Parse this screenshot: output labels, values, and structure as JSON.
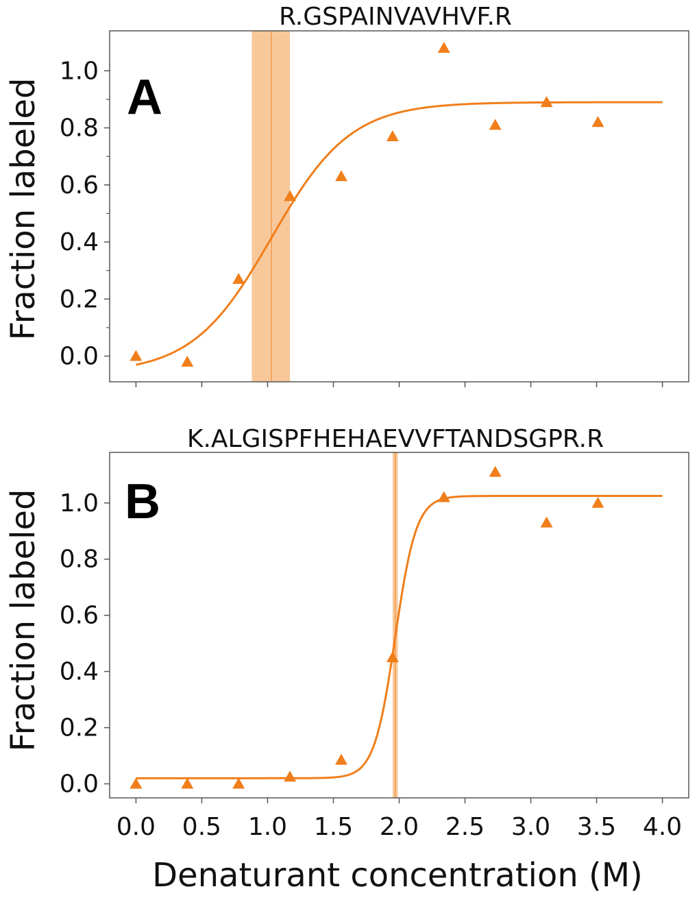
{
  "xlabel": "Denaturant concentration (M)",
  "colors": {
    "series": "#f07e1b",
    "band": "#f5b57a",
    "axes": "#555555"
  },
  "chart_data": [
    {
      "type": "scatter",
      "panel_label": "A",
      "title": "R.GSPAINVAVHVF.R",
      "xlabel": "",
      "ylabel": "Fraction labeled",
      "xlim": [
        -0.2,
        4.2
      ],
      "ylim": [
        -0.09,
        1.14
      ],
      "xticks": [
        "0.0",
        "0.5",
        "1.0",
        "1.5",
        "2.0",
        "2.5",
        "3.0",
        "3.5",
        "4.0"
      ],
      "xtick_labels_visible": false,
      "yticks": [
        "0.0",
        "0.2",
        "0.4",
        "0.6",
        "0.8",
        "1.0"
      ],
      "minor_yticks": [
        0.1,
        0.3,
        0.5,
        0.7,
        0.9
      ],
      "marker": "triangle",
      "points": {
        "x": [
          0.0,
          0.39,
          0.78,
          1.17,
          1.56,
          1.95,
          2.34,
          2.73,
          3.12,
          3.51
        ],
        "y": [
          0.0,
          -0.02,
          0.27,
          0.56,
          0.63,
          0.77,
          1.08,
          0.81,
          0.89,
          0.82
        ]
      },
      "fit": {
        "model": "sigmoid",
        "bottom": -0.06,
        "top": 0.89,
        "midpoint": 1.03,
        "slope": 0.3,
        "x_range": [
          0.0,
          4.0
        ]
      },
      "midpoint_band": {
        "center": 1.03,
        "low": 0.88,
        "high": 1.17
      }
    },
    {
      "type": "scatter",
      "panel_label": "B",
      "title": "K.ALGISPFHEHAEVVFTANDSGPR.R",
      "xlabel": "Denaturant concentration (M)",
      "ylabel": "Fraction labeled",
      "xlim": [
        -0.2,
        4.2
      ],
      "ylim": [
        -0.05,
        1.18
      ],
      "xticks": [
        "0.0",
        "0.5",
        "1.0",
        "1.5",
        "2.0",
        "2.5",
        "3.0",
        "3.5",
        "4.0"
      ],
      "xtick_labels_visible": true,
      "yticks": [
        "0.0",
        "0.2",
        "0.4",
        "0.6",
        "0.8",
        "1.0"
      ],
      "minor_yticks": [],
      "marker": "triangle",
      "points": {
        "x": [
          0.0,
          0.39,
          0.78,
          1.17,
          1.56,
          1.95,
          2.34,
          2.73,
          3.12,
          3.51
        ],
        "y": [
          0.0,
          0.0,
          0.0,
          0.025,
          0.085,
          0.45,
          1.02,
          1.11,
          0.93,
          1.0
        ]
      },
      "fit": {
        "model": "sigmoid",
        "bottom": 0.02,
        "top": 1.025,
        "midpoint": 1.97,
        "slope": 0.08,
        "x_range": [
          0.0,
          4.0
        ]
      },
      "midpoint_band": {
        "center": 1.97,
        "low": 1.95,
        "high": 1.99
      }
    }
  ]
}
